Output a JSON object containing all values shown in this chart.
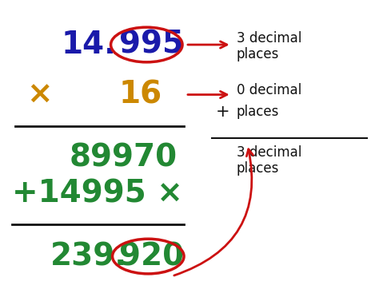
{
  "bg_color": "#ffffff",
  "num1_left": "14.",
  "num1_right": "995",
  "num1_color": "#1a1aaa",
  "sym_color": "#cc8800",
  "num2": "16",
  "result1": "89970",
  "result2": "+14995 ×",
  "final_left": "239.",
  "final_right": "920",
  "result_color": "#228833",
  "arrow_color": "#cc1111",
  "text_color": "#111111",
  "line_color": "#111111",
  "fs_main": 28,
  "fs_text": 12
}
